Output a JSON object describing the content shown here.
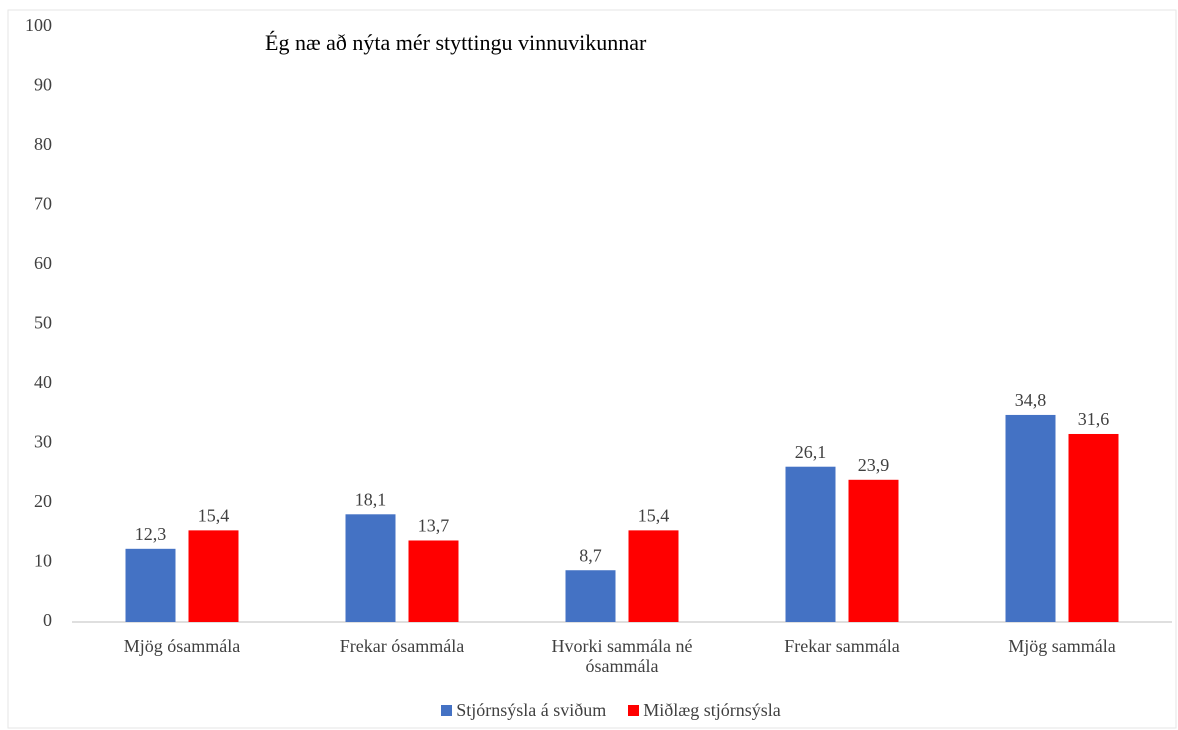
{
  "chart_data": {
    "type": "bar",
    "title": "Ég næ að nýta mér styttingu vinnuvikunnar",
    "categories": [
      "Mjög ósammála",
      "Frekar ósammála",
      "Hvorki sammála né ósammála",
      "Frekar sammála",
      "Mjög sammála"
    ],
    "series": [
      {
        "name": "Stjórnsýsla á sviðum",
        "color": "#4472c4",
        "values": [
          12.3,
          18.1,
          8.7,
          26.1,
          34.8
        ],
        "value_labels": [
          "12,3",
          "18,1",
          "8,7",
          "26,1",
          "34,8"
        ]
      },
      {
        "name": "Miðlæg stjórnsýsla",
        "color": "#ff0000",
        "values": [
          15.4,
          13.7,
          15.4,
          23.9,
          31.6
        ],
        "value_labels": [
          "15,4",
          "13,7",
          "15,4",
          "23,9",
          "31,6"
        ]
      }
    ],
    "ylim": [
      0,
      100
    ],
    "yticks": [
      0,
      10,
      20,
      30,
      40,
      50,
      60,
      70,
      80,
      90,
      100
    ],
    "grid": false,
    "legend": "bottom"
  }
}
